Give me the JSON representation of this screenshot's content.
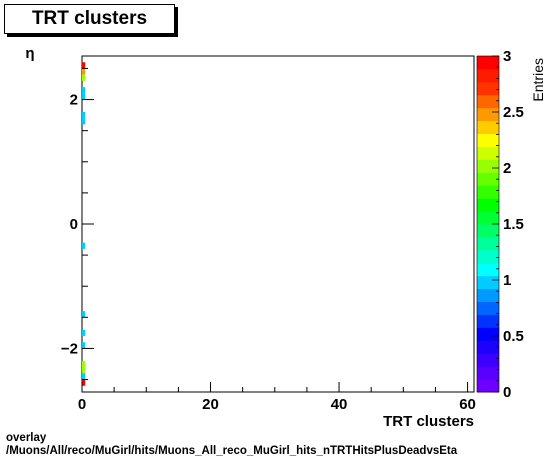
{
  "title": "TRT clusters",
  "caption": {
    "line1": "overlay",
    "line2": "/Muons/All/reco/MuGirl/hits/Muons_All_reco_MuGirl_hits_nTRTHitsPlusDeadvsEta"
  },
  "chart_data": {
    "type": "heatmap",
    "title": "TRT clusters",
    "xlabel": "TRT clusters",
    "ylabel": "η",
    "zlabel": "Entries",
    "xlim": [
      0,
      61
    ],
    "ylim": [
      -2.7,
      2.7
    ],
    "zlim": [
      0,
      3
    ],
    "x_ticks": [
      0,
      20,
      40,
      60
    ],
    "y_ticks": [
      -2,
      0,
      2
    ],
    "z_ticks": [
      0,
      0.5,
      1,
      1.5,
      2,
      2.5,
      3
    ],
    "bin_width_x": 1,
    "bin_width_y": 0.1,
    "cells": [
      {
        "x": 0,
        "y": 2.55,
        "z": 3
      },
      {
        "x": 0,
        "y": 2.45,
        "z": 2.5
      },
      {
        "x": 0,
        "y": 2.35,
        "z": 2
      },
      {
        "x": 0,
        "y": 2.15,
        "z": 1
      },
      {
        "x": 0,
        "y": 2.05,
        "z": 1
      },
      {
        "x": 0,
        "y": 1.75,
        "z": 1
      },
      {
        "x": 0,
        "y": 1.65,
        "z": 1
      },
      {
        "x": 0,
        "y": -0.35,
        "z": 1
      },
      {
        "x": 0,
        "y": -1.45,
        "z": 1
      },
      {
        "x": 0,
        "y": -1.75,
        "z": 1
      },
      {
        "x": 0,
        "y": -1.95,
        "z": 1
      },
      {
        "x": 0,
        "y": -2.25,
        "z": 2
      },
      {
        "x": 0,
        "y": -2.35,
        "z": 2
      },
      {
        "x": 0,
        "y": -2.45,
        "z": 1
      },
      {
        "x": 0,
        "y": -2.55,
        "z": 3
      }
    ]
  },
  "palette": [
    "#6e00ff",
    "#5a00ff",
    "#3c00ff",
    "#1e00ff",
    "#0000ff",
    "#0033ff",
    "#0066ff",
    "#0099ff",
    "#00ccff",
    "#00ffff",
    "#00ffcc",
    "#00ff99",
    "#00ff66",
    "#00ff33",
    "#00ff00",
    "#33ff00",
    "#66ff00",
    "#99ff00",
    "#ccff00",
    "#ffff00",
    "#ffcc00",
    "#ff9900",
    "#ff6600",
    "#ff3300",
    "#ff1a00",
    "#ff0000"
  ]
}
